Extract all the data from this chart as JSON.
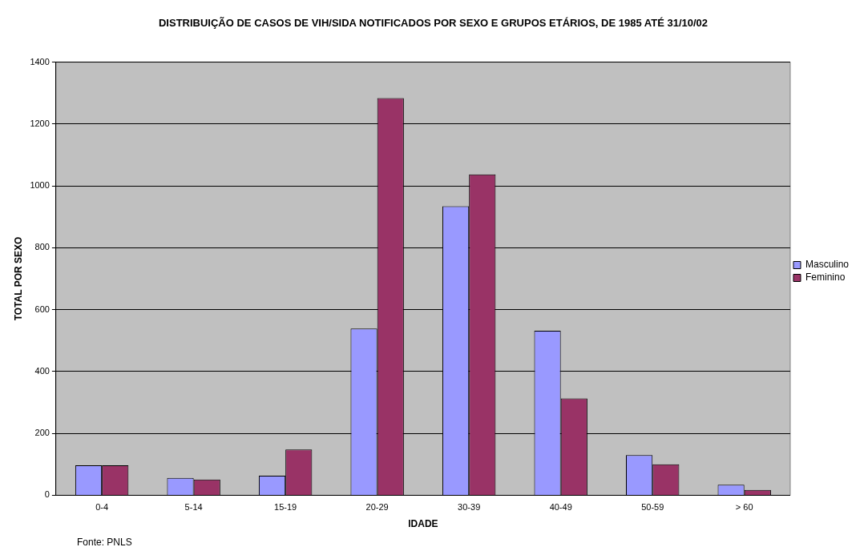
{
  "chart_data": {
    "type": "bar",
    "title": "DISTRIBUIÇÃO DE CASOS DE VIH/SIDA NOTIFICADOS POR SEXO E GRUPOS ETÁRIOS, DE 1985 ATÉ 31/10/02",
    "xlabel": "IDADE",
    "ylabel": "TOTAL POR SEXO",
    "annotations": [
      "Fonte: PNLS"
    ],
    "categories": [
      "0-4",
      "5-14",
      "15-19",
      "20-29",
      "30-39",
      "40-49",
      "50-59",
      "> 60"
    ],
    "series": [
      {
        "name": "Masculino",
        "color": "#9999ff",
        "values": [
          97,
          56,
          63,
          539,
          934,
          532,
          130,
          34
        ]
      },
      {
        "name": "Feminino",
        "color": "#993366",
        "values": [
          97,
          51,
          148,
          1284,
          1037,
          313,
          100,
          17
        ]
      }
    ],
    "ylim": [
      0,
      1400
    ],
    "yticks": [
      0,
      200,
      400,
      600,
      800,
      1000,
      1200,
      1400
    ],
    "grid": "y",
    "legend": "right"
  }
}
